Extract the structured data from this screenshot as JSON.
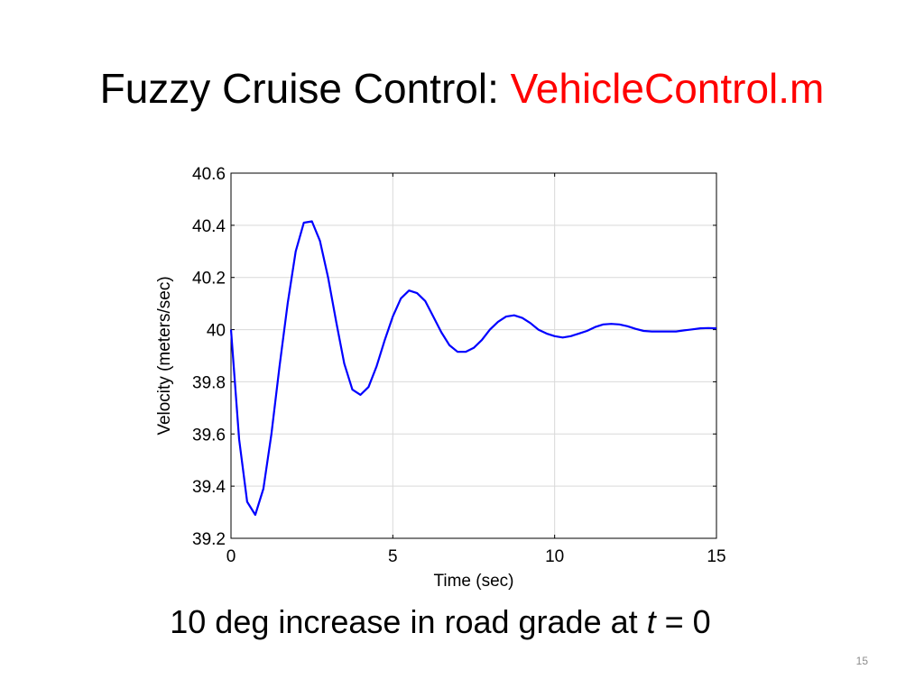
{
  "slide": {
    "title_main": "Fuzzy Cruise Control: ",
    "title_accent": "VehicleControl.m",
    "caption_prefix": "10 deg increase in road grade at ",
    "caption_variable": "t",
    "caption_suffix": " = 0",
    "slide_number": "15"
  },
  "colors": {
    "accent": "#ff0000",
    "series_line": "#0000ff",
    "grid": "#d9d9d9"
  },
  "chart_data": {
    "type": "line",
    "title": "",
    "xlabel": "Time (sec)",
    "ylabel": "Velocity (meters/sec)",
    "xlim": [
      0,
      15
    ],
    "ylim": [
      39.2,
      40.6
    ],
    "xticks": [
      0,
      5,
      10,
      15
    ],
    "yticks": [
      39.2,
      39.4,
      39.6,
      39.8,
      40,
      40.2,
      40.4,
      40.6
    ],
    "ytick_labels": [
      "39.2",
      "39.4",
      "39.6",
      "39.8",
      "40",
      "40.2",
      "40.4",
      "40.6"
    ],
    "grid": true,
    "series": [
      {
        "x": [
          0,
          0.25,
          0.5,
          0.75,
          1.0,
          1.25,
          1.5,
          1.75,
          2.0,
          2.25,
          2.5,
          2.75,
          3.0,
          3.25,
          3.5,
          3.75,
          4.0,
          4.25,
          4.5,
          4.75,
          5.0,
          5.25,
          5.5,
          5.75,
          6.0,
          6.25,
          6.5,
          6.75,
          7.0,
          7.25,
          7.5,
          7.75,
          8.0,
          8.25,
          8.5,
          8.75,
          9.0,
          9.25,
          9.5,
          9.75,
          10.0,
          10.25,
          10.5,
          10.75,
          11.0,
          11.25,
          11.5,
          11.75,
          12.0,
          12.25,
          12.5,
          12.75,
          13.0,
          13.25,
          13.5,
          13.75,
          14.0,
          14.25,
          14.5,
          14.75,
          15.0
        ],
        "values": [
          40.0,
          39.58,
          39.34,
          39.29,
          39.39,
          39.6,
          39.86,
          40.1,
          40.3,
          40.41,
          40.415,
          40.34,
          40.2,
          40.03,
          39.87,
          39.77,
          39.75,
          39.78,
          39.86,
          39.96,
          40.05,
          40.12,
          40.15,
          40.14,
          40.11,
          40.05,
          39.99,
          39.94,
          39.915,
          39.915,
          39.93,
          39.96,
          40.0,
          40.03,
          40.05,
          40.055,
          40.045,
          40.025,
          40.0,
          39.985,
          39.975,
          39.97,
          39.975,
          39.985,
          39.995,
          40.01,
          40.02,
          40.022,
          40.02,
          40.013,
          40.003,
          39.995,
          39.993,
          39.993,
          39.993,
          39.993,
          39.997,
          40.001,
          40.005,
          40.006,
          40.005
        ]
      }
    ]
  }
}
